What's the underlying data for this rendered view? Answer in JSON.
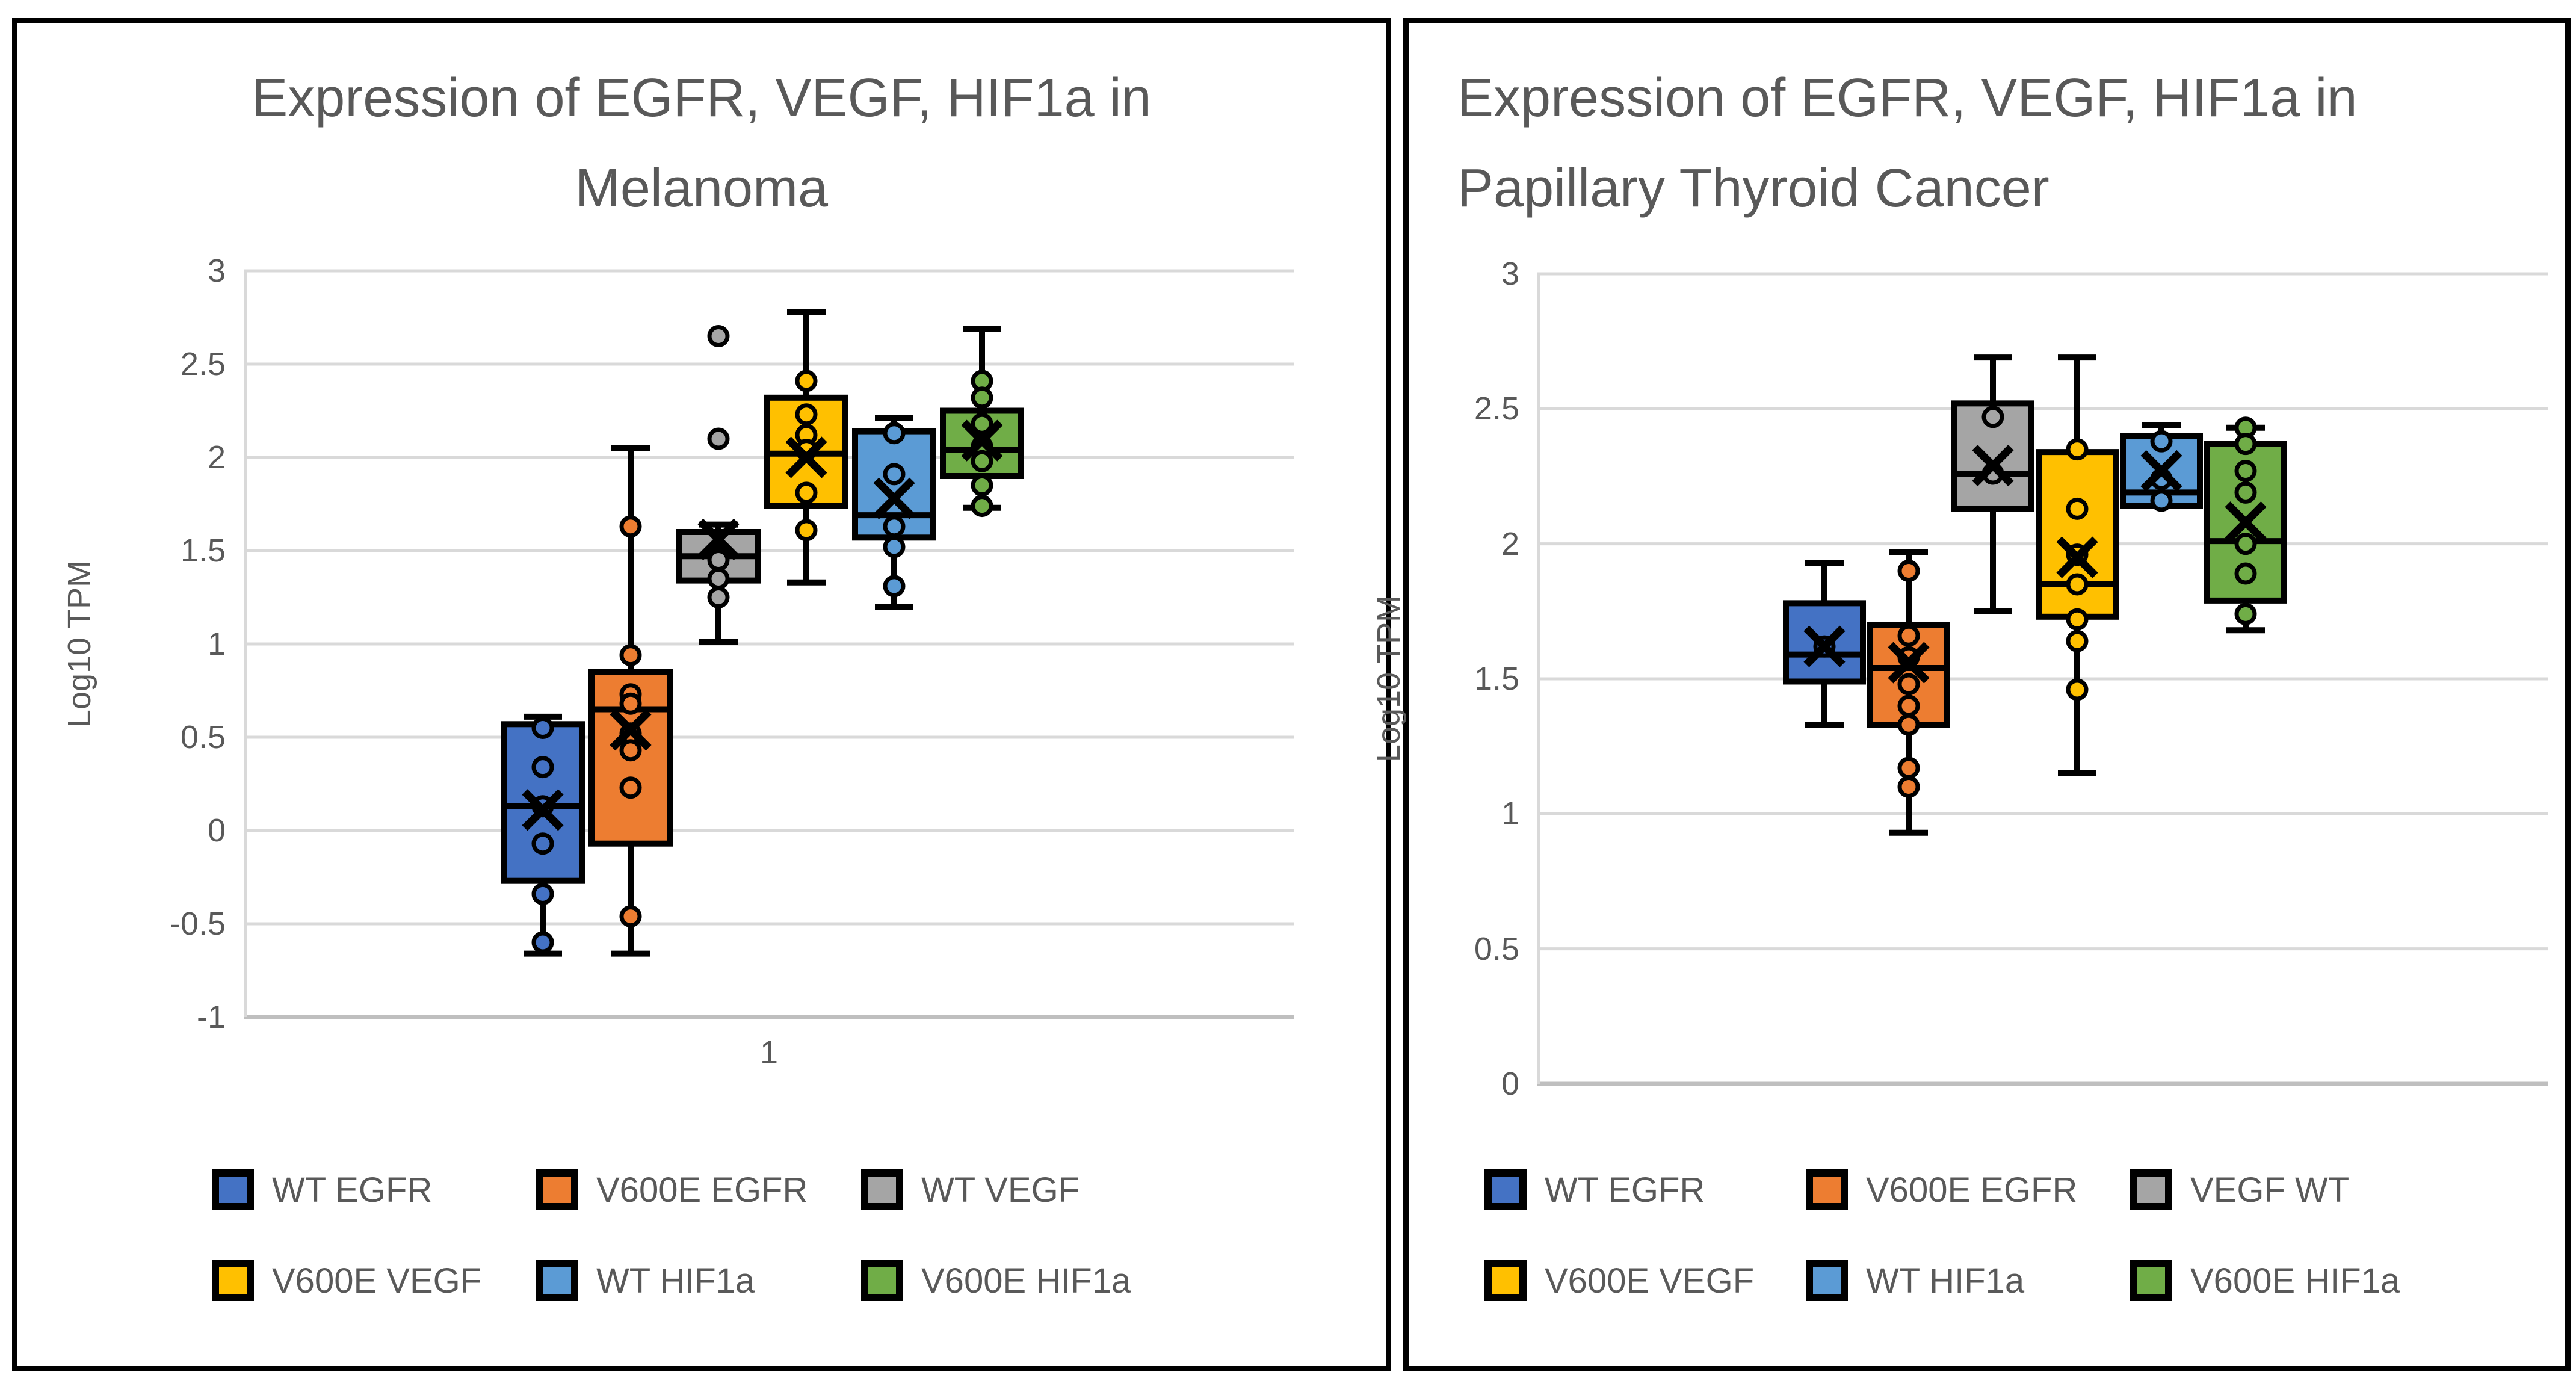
{
  "colors": {
    "text": "#595959",
    "gridline": "#D9D9D9",
    "axis_line": "#BFBFBF",
    "box_outline": "#000000"
  },
  "chart_data": [
    {
      "type": "box",
      "title": "Expression of EGFR, VEGF, HIF1a in Melanoma",
      "title_lines": [
        "Expression of EGFR, VEGF, HIF1a in",
        "Melanoma"
      ],
      "ylabel": "Log10 TPM",
      "ylim": [
        -1,
        3
      ],
      "ytick_step": 0.5,
      "ytick_labels": [
        "3",
        "2.5",
        "2",
        "1.5",
        "1",
        "0.5",
        "0",
        "-0.5",
        "-1"
      ],
      "x_category_label": "1",
      "grid": true,
      "legend_position": "bottom",
      "series": [
        {
          "name": "WT EGFR",
          "color": "#4472C4",
          "whisker_low": -0.66,
          "q1": -0.27,
          "median": 0.13,
          "q3": 0.57,
          "whisker_high": 0.61,
          "mean": 0.11,
          "points": [
            0.55,
            0.34,
            0.13,
            -0.07,
            -0.34,
            -0.6
          ]
        },
        {
          "name": "V600E EGFR",
          "color": "#ED7D31",
          "whisker_low": -0.66,
          "q1": -0.07,
          "median": 0.65,
          "q3": 0.85,
          "whisker_high": 2.05,
          "mean": 0.54,
          "points": [
            1.63,
            0.94,
            0.73,
            0.68,
            0.52,
            0.43,
            0.23,
            -0.46
          ]
        },
        {
          "name": "WT VEGF",
          "color": "#A5A5A5",
          "whisker_low": 1.01,
          "q1": 1.34,
          "median": 1.47,
          "q3": 1.6,
          "whisker_high": 1.64,
          "mean": 1.56,
          "points": [
            2.65,
            2.1,
            1.47,
            1.45,
            1.35,
            1.25
          ]
        },
        {
          "name": "V600E VEGF",
          "color": "#FFC000",
          "whisker_low": 1.33,
          "q1": 1.74,
          "median": 2.02,
          "q3": 2.32,
          "whisker_high": 2.78,
          "mean": 2.0,
          "points": [
            2.41,
            2.23,
            2.12,
            2.04,
            1.81,
            1.61
          ]
        },
        {
          "name": "WT HIF1a",
          "color": "#5B9BD5",
          "whisker_low": 1.2,
          "q1": 1.57,
          "median": 1.69,
          "q3": 2.14,
          "whisker_high": 2.21,
          "mean": 1.78,
          "points": [
            2.13,
            1.91,
            1.63,
            1.52,
            1.31
          ]
        },
        {
          "name": "V600E HIF1a",
          "color": "#70AD47",
          "whisker_low": 1.73,
          "q1": 1.9,
          "median": 2.04,
          "q3": 2.25,
          "whisker_high": 2.69,
          "mean": 2.09,
          "points": [
            2.41,
            2.32,
            2.18,
            2.06,
            1.98,
            1.85,
            1.74
          ]
        }
      ]
    },
    {
      "type": "box",
      "title": "Expression of EGFR, VEGF, HIF1a in Papillary Thyroid Cancer",
      "title_lines": [
        "Expression of EGFR, VEGF, HIF1a in",
        "Papillary Thyroid Cancer"
      ],
      "ylabel": "Log10 TPM",
      "ylim": [
        0,
        3
      ],
      "ytick_step": 0.5,
      "ytick_labels": [
        "3",
        "2.5",
        "2",
        "1.5",
        "1",
        "0.5",
        "0"
      ],
      "x_category_label": "",
      "grid": true,
      "legend_position": "bottom",
      "series": [
        {
          "name": "WT EGFR",
          "color": "#4472C4",
          "whisker_low": 1.33,
          "q1": 1.49,
          "median": 1.59,
          "q3": 1.78,
          "whisker_high": 1.93,
          "mean": 1.62,
          "points": [
            1.62
          ]
        },
        {
          "name": "V600E EGFR",
          "color": "#ED7D31",
          "whisker_low": 0.93,
          "q1": 1.33,
          "median": 1.54,
          "q3": 1.7,
          "whisker_high": 1.97,
          "mean": 1.56,
          "points": [
            1.9,
            1.66,
            1.58,
            1.48,
            1.4,
            1.33,
            1.17,
            1.1
          ]
        },
        {
          "name": "VEGF WT",
          "color": "#A5A5A5",
          "whisker_low": 1.75,
          "q1": 2.13,
          "median": 2.26,
          "q3": 2.52,
          "whisker_high": 2.69,
          "mean": 2.29,
          "points": [
            2.47,
            2.26
          ]
        },
        {
          "name": "V600E VEGF",
          "color": "#FFC000",
          "whisker_low": 1.15,
          "q1": 1.73,
          "median": 1.85,
          "q3": 2.34,
          "whisker_high": 2.69,
          "mean": 1.95,
          "points": [
            2.35,
            2.13,
            1.96,
            1.85,
            1.72,
            1.64,
            1.46
          ]
        },
        {
          "name": "WT HIF1a",
          "color": "#5B9BD5",
          "whisker_low": 2.14,
          "q1": 2.14,
          "median": 2.19,
          "q3": 2.4,
          "whisker_high": 2.44,
          "mean": 2.27,
          "points": [
            2.38,
            2.24,
            2.16
          ]
        },
        {
          "name": "V600E HIF1a",
          "color": "#70AD47",
          "whisker_low": 1.68,
          "q1": 1.79,
          "median": 2.01,
          "q3": 2.37,
          "whisker_high": 2.43,
          "mean": 2.08,
          "points": [
            2.43,
            2.37,
            2.27,
            2.19,
            2.0,
            1.89,
            1.74
          ]
        }
      ]
    }
  ]
}
